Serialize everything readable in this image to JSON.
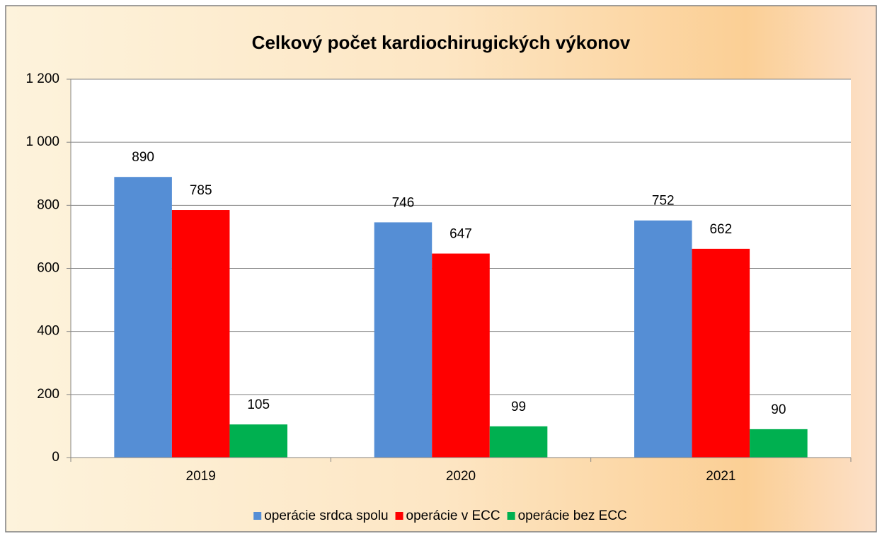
{
  "chart_data": {
    "type": "bar",
    "title": "Celkový počet kardiochirugických výkonov",
    "categories": [
      "2019",
      "2020",
      "2021"
    ],
    "series": [
      {
        "name": "operácie srdca spolu",
        "color": "#558ed5",
        "values": [
          890,
          746,
          752
        ]
      },
      {
        "name": "operácie v ECC",
        "color": "#ff0000",
        "values": [
          785,
          647,
          662
        ]
      },
      {
        "name": "operácie bez ECC",
        "color": "#00b050",
        "values": [
          105,
          99,
          90
        ]
      }
    ],
    "ylim": [
      0,
      1200
    ],
    "yticks": [
      0,
      200,
      400,
      600,
      800,
      {
        "value": 1000,
        "label": "1 000"
      },
      {
        "value": 1200,
        "label": "1 200"
      }
    ],
    "grid": true,
    "legend": "bottom"
  }
}
